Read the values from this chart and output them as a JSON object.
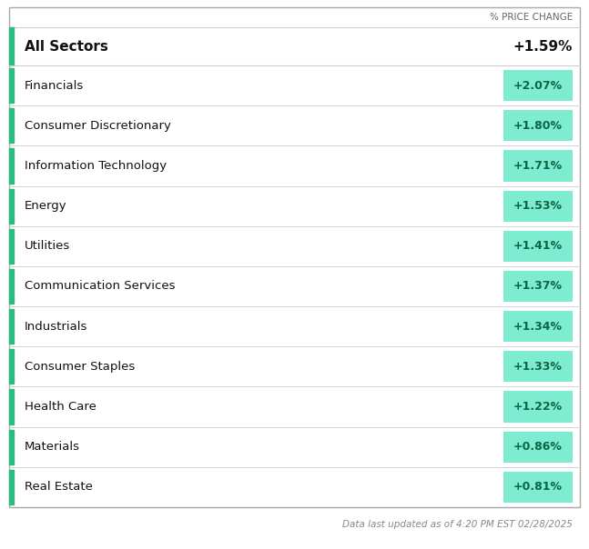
{
  "header_label": "% PRICE CHANGE",
  "all_sectors_label": "All Sectors",
  "all_sectors_value": "+1.59%",
  "sectors": [
    {
      "name": "Financials",
      "value": "+2.07%"
    },
    {
      "name": "Consumer Discretionary",
      "value": "+1.80%"
    },
    {
      "name": "Information Technology",
      "value": "+1.71%"
    },
    {
      "name": "Energy",
      "value": "+1.53%"
    },
    {
      "name": "Utilities",
      "value": "+1.41%"
    },
    {
      "name": "Communication Services",
      "value": "+1.37%"
    },
    {
      "name": "Industrials",
      "value": "+1.34%"
    },
    {
      "name": "Consumer Staples",
      "value": "+1.33%"
    },
    {
      "name": "Health Care",
      "value": "+1.22%"
    },
    {
      "name": "Materials",
      "value": "+0.86%"
    },
    {
      "name": "Real Estate",
      "value": "+0.81%"
    }
  ],
  "footer_text": "Data last updated as of 4:20 PM EST 02/28/2025",
  "bg_color": "#ffffff",
  "border_color": "#aaaaaa",
  "divider_color": "#cccccc",
  "badge_bg_color": "#7EECD1",
  "accent_color": "#2dbb80",
  "text_color": "#111111",
  "header_text_color": "#666666",
  "footer_text_color": "#888888",
  "badge_text_color": "#0a6644"
}
